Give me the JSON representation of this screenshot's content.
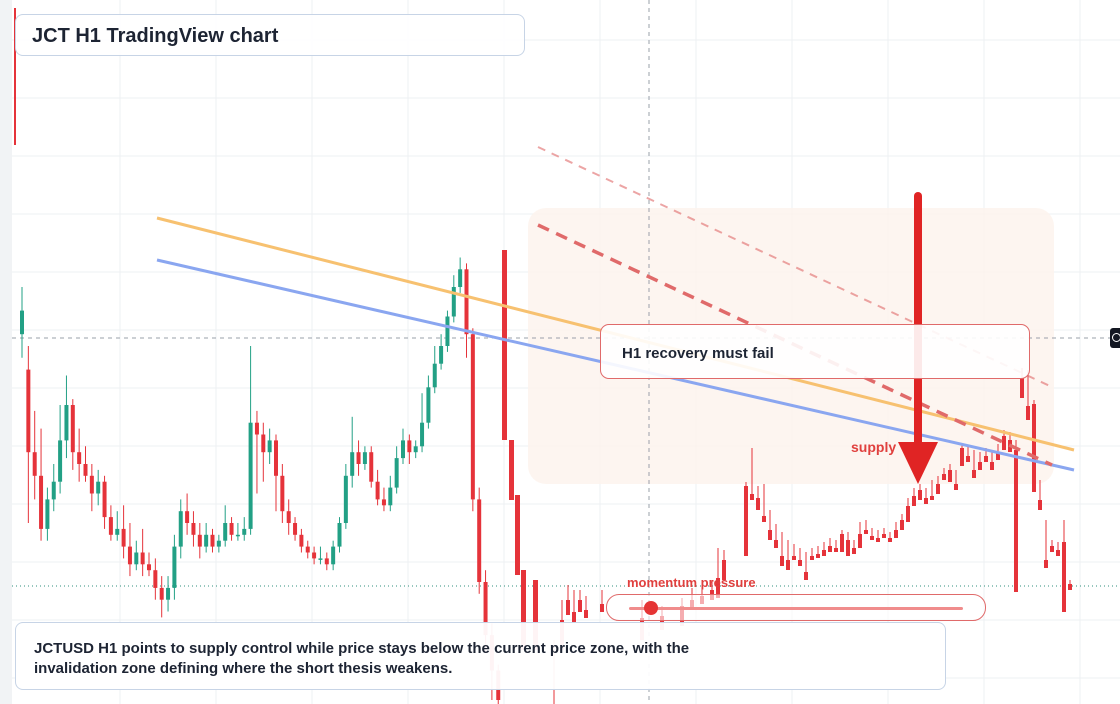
{
  "title": "JCT H1 TradingView chart",
  "recovery_note": "H1 recovery must fail",
  "supply_label": "supply",
  "momentum_label": "momentum pressure",
  "description": "JCTUSD H1 points to supply control while price stays below the current price zone, with the invalidation zone defining where the short thesis weakens.",
  "colors": {
    "up": "#22a085",
    "down": "#e5333a",
    "trendline_orange": "#f7c170",
    "trendline_blue": "#8aa6f0",
    "resistance_dashed": "#e06a6a",
    "arrow": "#e02424",
    "zone_fill": "#fdf3ec"
  },
  "chart_data": {
    "type": "candlestick",
    "timeframe": "H1",
    "symbol": "JCTUSD",
    "axes_labels_visible": false,
    "grid": true,
    "lines": {
      "crosshair_horizontal_rel": 0.495,
      "current_price_dotted_rel": 0.21
    },
    "candles_rel": [
      [
        0.62,
        0.66,
        0.7,
        0.58
      ],
      [
        0.56,
        0.42,
        0.6,
        0.3
      ],
      [
        0.42,
        0.38,
        0.49,
        0.34
      ],
      [
        0.38,
        0.29,
        0.46,
        0.27
      ],
      [
        0.29,
        0.34,
        0.36,
        0.27
      ],
      [
        0.34,
        0.37,
        0.4,
        0.32
      ],
      [
        0.37,
        0.44,
        0.5,
        0.35
      ],
      [
        0.44,
        0.5,
        0.55,
        0.41
      ],
      [
        0.5,
        0.42,
        0.51,
        0.39
      ],
      [
        0.42,
        0.4,
        0.46,
        0.37
      ],
      [
        0.4,
        0.38,
        0.43,
        0.37
      ],
      [
        0.38,
        0.35,
        0.4,
        0.32
      ],
      [
        0.35,
        0.37,
        0.39,
        0.33
      ],
      [
        0.37,
        0.31,
        0.38,
        0.29
      ],
      [
        0.31,
        0.28,
        0.33,
        0.27
      ],
      [
        0.28,
        0.29,
        0.32,
        0.27
      ],
      [
        0.29,
        0.26,
        0.33,
        0.24
      ],
      [
        0.26,
        0.23,
        0.3,
        0.21
      ],
      [
        0.23,
        0.25,
        0.27,
        0.22
      ],
      [
        0.25,
        0.23,
        0.29,
        0.21
      ],
      [
        0.23,
        0.22,
        0.25,
        0.21
      ],
      [
        0.22,
        0.19,
        0.24,
        0.17
      ],
      [
        0.19,
        0.17,
        0.21,
        0.14
      ],
      [
        0.17,
        0.19,
        0.21,
        0.15
      ],
      [
        0.19,
        0.26,
        0.28,
        0.17
      ],
      [
        0.26,
        0.32,
        0.34,
        0.24
      ],
      [
        0.32,
        0.3,
        0.35,
        0.28
      ],
      [
        0.3,
        0.28,
        0.32,
        0.26
      ],
      [
        0.28,
        0.26,
        0.3,
        0.24
      ],
      [
        0.26,
        0.28,
        0.3,
        0.25
      ],
      [
        0.28,
        0.26,
        0.29,
        0.25
      ],
      [
        0.26,
        0.27,
        0.28,
        0.25
      ],
      [
        0.27,
        0.3,
        0.33,
        0.26
      ],
      [
        0.3,
        0.28,
        0.31,
        0.27
      ],
      [
        0.28,
        0.28,
        0.3,
        0.27
      ],
      [
        0.28,
        0.29,
        0.31,
        0.27
      ],
      [
        0.29,
        0.47,
        0.6,
        0.28
      ],
      [
        0.47,
        0.45,
        0.49,
        0.35
      ],
      [
        0.45,
        0.42,
        0.47,
        0.37
      ],
      [
        0.42,
        0.44,
        0.46,
        0.4
      ],
      [
        0.44,
        0.38,
        0.45,
        0.32
      ],
      [
        0.38,
        0.32,
        0.4,
        0.3
      ],
      [
        0.32,
        0.3,
        0.34,
        0.28
      ],
      [
        0.3,
        0.28,
        0.31,
        0.27
      ],
      [
        0.28,
        0.26,
        0.29,
        0.25
      ],
      [
        0.26,
        0.25,
        0.27,
        0.24
      ],
      [
        0.25,
        0.24,
        0.26,
        0.23
      ],
      [
        0.24,
        0.24,
        0.26,
        0.23
      ],
      [
        0.24,
        0.23,
        0.25,
        0.22
      ],
      [
        0.23,
        0.26,
        0.27,
        0.22
      ],
      [
        0.26,
        0.3,
        0.31,
        0.25
      ],
      [
        0.3,
        0.38,
        0.4,
        0.29
      ],
      [
        0.38,
        0.42,
        0.48,
        0.36
      ],
      [
        0.42,
        0.4,
        0.44,
        0.38
      ],
      [
        0.4,
        0.42,
        0.43,
        0.39
      ],
      [
        0.42,
        0.37,
        0.43,
        0.36
      ],
      [
        0.37,
        0.34,
        0.39,
        0.33
      ],
      [
        0.34,
        0.33,
        0.36,
        0.32
      ],
      [
        0.33,
        0.36,
        0.38,
        0.32
      ],
      [
        0.36,
        0.41,
        0.43,
        0.35
      ],
      [
        0.41,
        0.44,
        0.46,
        0.4
      ],
      [
        0.44,
        0.42,
        0.45,
        0.4
      ],
      [
        0.42,
        0.43,
        0.44,
        0.41
      ],
      [
        0.43,
        0.47,
        0.52,
        0.42
      ],
      [
        0.47,
        0.53,
        0.55,
        0.46
      ],
      [
        0.53,
        0.57,
        0.6,
        0.52
      ],
      [
        0.57,
        0.6,
        0.62,
        0.56
      ],
      [
        0.6,
        0.65,
        0.66,
        0.59
      ],
      [
        0.65,
        0.7,
        0.72,
        0.64
      ],
      [
        0.7,
        0.73,
        0.75,
        0.69
      ],
      [
        0.73,
        0.62,
        0.74,
        0.58
      ],
      [
        0.62,
        0.34,
        0.63,
        0.32
      ],
      [
        0.34,
        0.2,
        0.36,
        0.18
      ],
      [
        0.2,
        0.11,
        0.22,
        0.08
      ],
      [
        0.11,
        0.05,
        0.13,
        0.0
      ],
      [
        0.05,
        0.0,
        0.06,
        -0.02
      ]
    ],
    "trendlines": [
      "orange descending resistance",
      "blue descending trendline",
      "dashed red upper channel",
      "dashed red resistance"
    ],
    "annotations": [
      "supply zone",
      "momentum pressure",
      "red downward arrow"
    ]
  }
}
